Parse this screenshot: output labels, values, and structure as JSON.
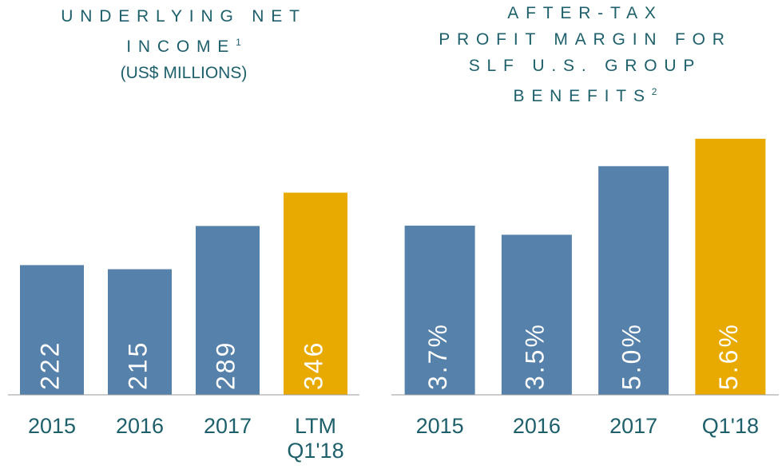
{
  "chart_data": [
    {
      "type": "bar",
      "title": [
        "UNDERLYING NET",
        "INCOME"
      ],
      "title_note": "1",
      "subtitle": "(US$ MILLIONS)",
      "categories": [
        "2015",
        "2016",
        "2017",
        "LTM Q1'18"
      ],
      "values": [
        222,
        215,
        289,
        346
      ],
      "colors": [
        "#5581ab",
        "#5581ab",
        "#5581ab",
        "#e8aa00"
      ],
      "ylim": [
        0,
        400
      ]
    },
    {
      "type": "bar",
      "title": [
        "AFTER-TAX",
        "PROFIT MARGIN FOR",
        "SLF U.S. GROUP",
        "BENEFITS"
      ],
      "title_note": "2",
      "categories": [
        "2015",
        "2016",
        "2017",
        "Q1'18"
      ],
      "values": [
        3.7,
        3.5,
        5.0,
        5.6
      ],
      "value_labels": [
        "3.7%",
        "3.5%",
        "5.0%",
        "5.6%"
      ],
      "colors": [
        "#5581ab",
        "#5581ab",
        "#5581ab",
        "#e8aa00"
      ],
      "ylim": [
        0,
        6
      ]
    }
  ]
}
